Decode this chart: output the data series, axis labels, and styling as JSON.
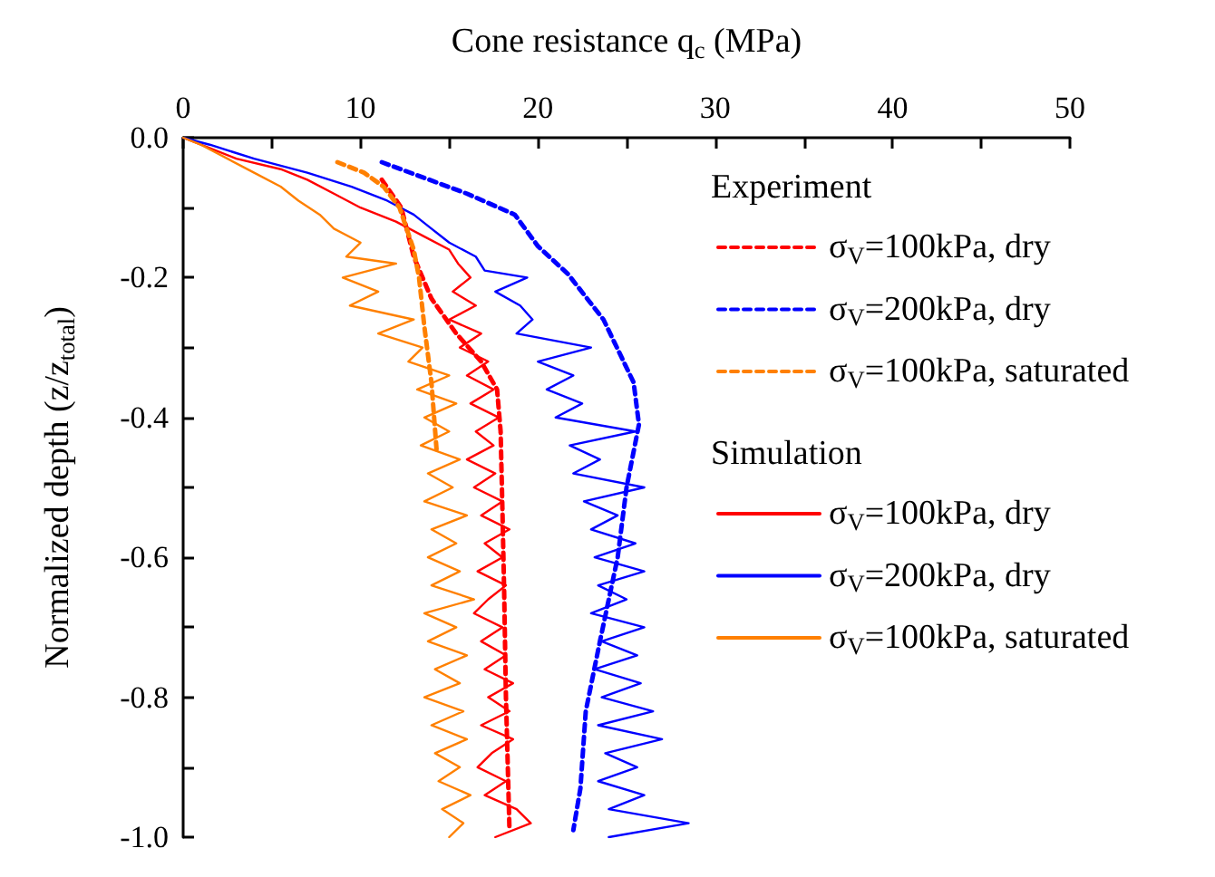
{
  "chart_data": {
    "type": "line",
    "xlabel": "Cone resistance q$_{c}$ (MPa)",
    "ylabel": "Normalized depth (z/z$_{total}$)",
    "xlim": [
      0,
      50
    ],
    "xticks": [
      0,
      {
        "value": 5,
        "label": null
      },
      10,
      {
        "value": 15,
        "label": null
      },
      20,
      {
        "value": 25,
        "label": null
      },
      30,
      {
        "value": 35,
        "label": null
      },
      40,
      {
        "value": 45,
        "label": null
      },
      50
    ],
    "ylim": [
      -1,
      0
    ],
    "yticks": [
      {
        "value": 0,
        "label": "0.0"
      },
      {
        "value": -0.1,
        "label": null
      },
      {
        "value": -0.2,
        "label": "-0.2"
      },
      {
        "value": -0.3,
        "label": null
      },
      {
        "value": -0.4,
        "label": "-0.4"
      },
      {
        "value": -0.5,
        "label": null
      },
      {
        "value": -0.6,
        "label": "-0.6"
      },
      {
        "value": -0.7,
        "label": null
      },
      {
        "value": -0.8,
        "label": "-0.8"
      },
      {
        "value": -0.9,
        "label": null
      },
      {
        "value": -1,
        "label": "-1.0"
      }
    ],
    "legend": "top right",
    "marker": "none",
    "annotations": [
      "Experiment",
      "Simulation"
    ],
    "series": [
      {
        "name": "σ$_{V}$=100kPa, dry",
        "color": "#ff0000",
        "line_style": "dashed",
        "x": [
          11.2,
          12.3,
          13,
          14,
          15.4,
          16.8,
          17.7,
          17.9,
          18,
          18.1,
          18.2,
          18.4
        ],
        "values": [
          -0.06,
          -0.1,
          -0.17,
          -0.23,
          -0.28,
          -0.32,
          -0.36,
          -0.42,
          -0.53,
          -0.65,
          -0.8,
          -0.99
        ]
      },
      {
        "name": "σ$_{V}$=200kPa, dry",
        "color": "#0000ff",
        "line_style": "dashed",
        "x": [
          11.2,
          16,
          18.7,
          20,
          21.7,
          23.7,
          25.4,
          25.7,
          25,
          24.5,
          23.5,
          22.7,
          22.4,
          22
        ],
        "values": [
          -0.035,
          -0.08,
          -0.11,
          -0.155,
          -0.195,
          -0.26,
          -0.35,
          -0.41,
          -0.5,
          -0.6,
          -0.72,
          -0.82,
          -0.93,
          -0.99
        ]
      },
      {
        "name": "σ$_{V}$=100kPa, saturated",
        "color": "#ff8000",
        "line_style": "dashed",
        "x": [
          8.7,
          10.2,
          11.3,
          12.2,
          12.6,
          13,
          13.3,
          13.6,
          14,
          14.3
        ],
        "values": [
          -0.035,
          -0.05,
          -0.07,
          -0.1,
          -0.13,
          -0.16,
          -0.2,
          -0.27,
          -0.35,
          -0.45
        ]
      },
      {
        "name": "σ$_{V}$=100kPa, dry",
        "color": "#ff0000",
        "line_style": "solid",
        "x": [
          0,
          1,
          3,
          5.5,
          7,
          8.5,
          10,
          12,
          13.5,
          15,
          15.5,
          16.2,
          15.2,
          16.5,
          15,
          16.8,
          15.6,
          17.2,
          16,
          17.5,
          16.2,
          17.8,
          16.5,
          17.5,
          16,
          17.6,
          16.4,
          18,
          16.8,
          18.4,
          17,
          18,
          16.6,
          18.2,
          17.2,
          16.4,
          18,
          16.8,
          18.2,
          17,
          18.6,
          17.2,
          18.4,
          16.8,
          18.6,
          17.4,
          16.6,
          18.2,
          17,
          18.8,
          19.6,
          17.6
        ],
        "values": [
          0,
          -0.01,
          -0.03,
          -0.045,
          -0.06,
          -0.08,
          -0.1,
          -0.12,
          -0.14,
          -0.16,
          -0.18,
          -0.2,
          -0.22,
          -0.24,
          -0.26,
          -0.28,
          -0.3,
          -0.32,
          -0.34,
          -0.36,
          -0.38,
          -0.4,
          -0.42,
          -0.44,
          -0.46,
          -0.48,
          -0.5,
          -0.52,
          -0.54,
          -0.56,
          -0.58,
          -0.6,
          -0.62,
          -0.64,
          -0.66,
          -0.68,
          -0.7,
          -0.72,
          -0.74,
          -0.76,
          -0.78,
          -0.8,
          -0.82,
          -0.84,
          -0.86,
          -0.88,
          -0.9,
          -0.92,
          -0.94,
          -0.96,
          -0.98,
          -1
        ]
      },
      {
        "name": "σ$_{V}$=200kPa, dry",
        "color": "#0000ff",
        "line_style": "solid",
        "x": [
          0,
          1.5,
          4,
          7,
          9.5,
          11.5,
          13,
          14,
          15,
          16.5,
          17,
          19.4,
          17.6,
          19,
          19.7,
          18.8,
          23,
          20,
          22,
          20.5,
          22.5,
          21,
          25.5,
          21.8,
          23.5,
          22,
          26,
          22.6,
          24.5,
          23,
          25.5,
          23.2,
          26,
          23.4,
          25,
          23,
          26,
          23.6,
          25.6,
          23.2,
          25.8,
          23.6,
          26.5,
          23.4,
          27,
          23.8,
          25.6,
          23.4,
          26,
          24,
          28.5,
          24
        ],
        "values": [
          0,
          -0.01,
          -0.03,
          -0.05,
          -0.07,
          -0.09,
          -0.11,
          -0.13,
          -0.15,
          -0.17,
          -0.19,
          -0.2,
          -0.22,
          -0.24,
          -0.26,
          -0.28,
          -0.3,
          -0.32,
          -0.34,
          -0.36,
          -0.38,
          -0.4,
          -0.42,
          -0.44,
          -0.46,
          -0.48,
          -0.5,
          -0.52,
          -0.54,
          -0.56,
          -0.58,
          -0.6,
          -0.62,
          -0.64,
          -0.66,
          -0.68,
          -0.7,
          -0.72,
          -0.74,
          -0.76,
          -0.78,
          -0.8,
          -0.82,
          -0.84,
          -0.86,
          -0.88,
          -0.9,
          -0.92,
          -0.94,
          -0.96,
          -0.98,
          -1
        ]
      },
      {
        "name": "σ$_{V}$=100kPa, saturated",
        "color": "#ff8000",
        "line_style": "solid",
        "x": [
          0,
          1,
          2.5,
          4,
          5.5,
          6.5,
          7.7,
          8.5,
          10,
          9.2,
          12,
          9,
          11,
          9.4,
          13,
          11,
          13.5,
          12.7,
          15,
          13.2,
          15.4,
          13.6,
          15,
          13.4,
          15.6,
          13.8,
          15.2,
          13.6,
          16,
          14,
          15.4,
          13.8,
          15.6,
          14,
          16.4,
          13.6,
          15.4,
          13.8,
          16,
          14.2,
          15.6,
          13.6,
          15.8,
          14,
          16,
          14.2,
          15.6,
          14.4,
          16.2,
          14.6,
          15.8,
          15
        ],
        "values": [
          0,
          -0.01,
          -0.03,
          -0.05,
          -0.07,
          -0.09,
          -0.11,
          -0.13,
          -0.15,
          -0.17,
          -0.18,
          -0.2,
          -0.22,
          -0.24,
          -0.26,
          -0.28,
          -0.3,
          -0.32,
          -0.34,
          -0.36,
          -0.38,
          -0.4,
          -0.42,
          -0.44,
          -0.46,
          -0.48,
          -0.5,
          -0.52,
          -0.54,
          -0.56,
          -0.58,
          -0.6,
          -0.62,
          -0.64,
          -0.66,
          -0.68,
          -0.7,
          -0.72,
          -0.74,
          -0.76,
          -0.78,
          -0.8,
          -0.82,
          -0.84,
          -0.86,
          -0.88,
          -0.9,
          -0.92,
          -0.94,
          -0.96,
          -0.98,
          -1
        ]
      }
    ]
  }
}
